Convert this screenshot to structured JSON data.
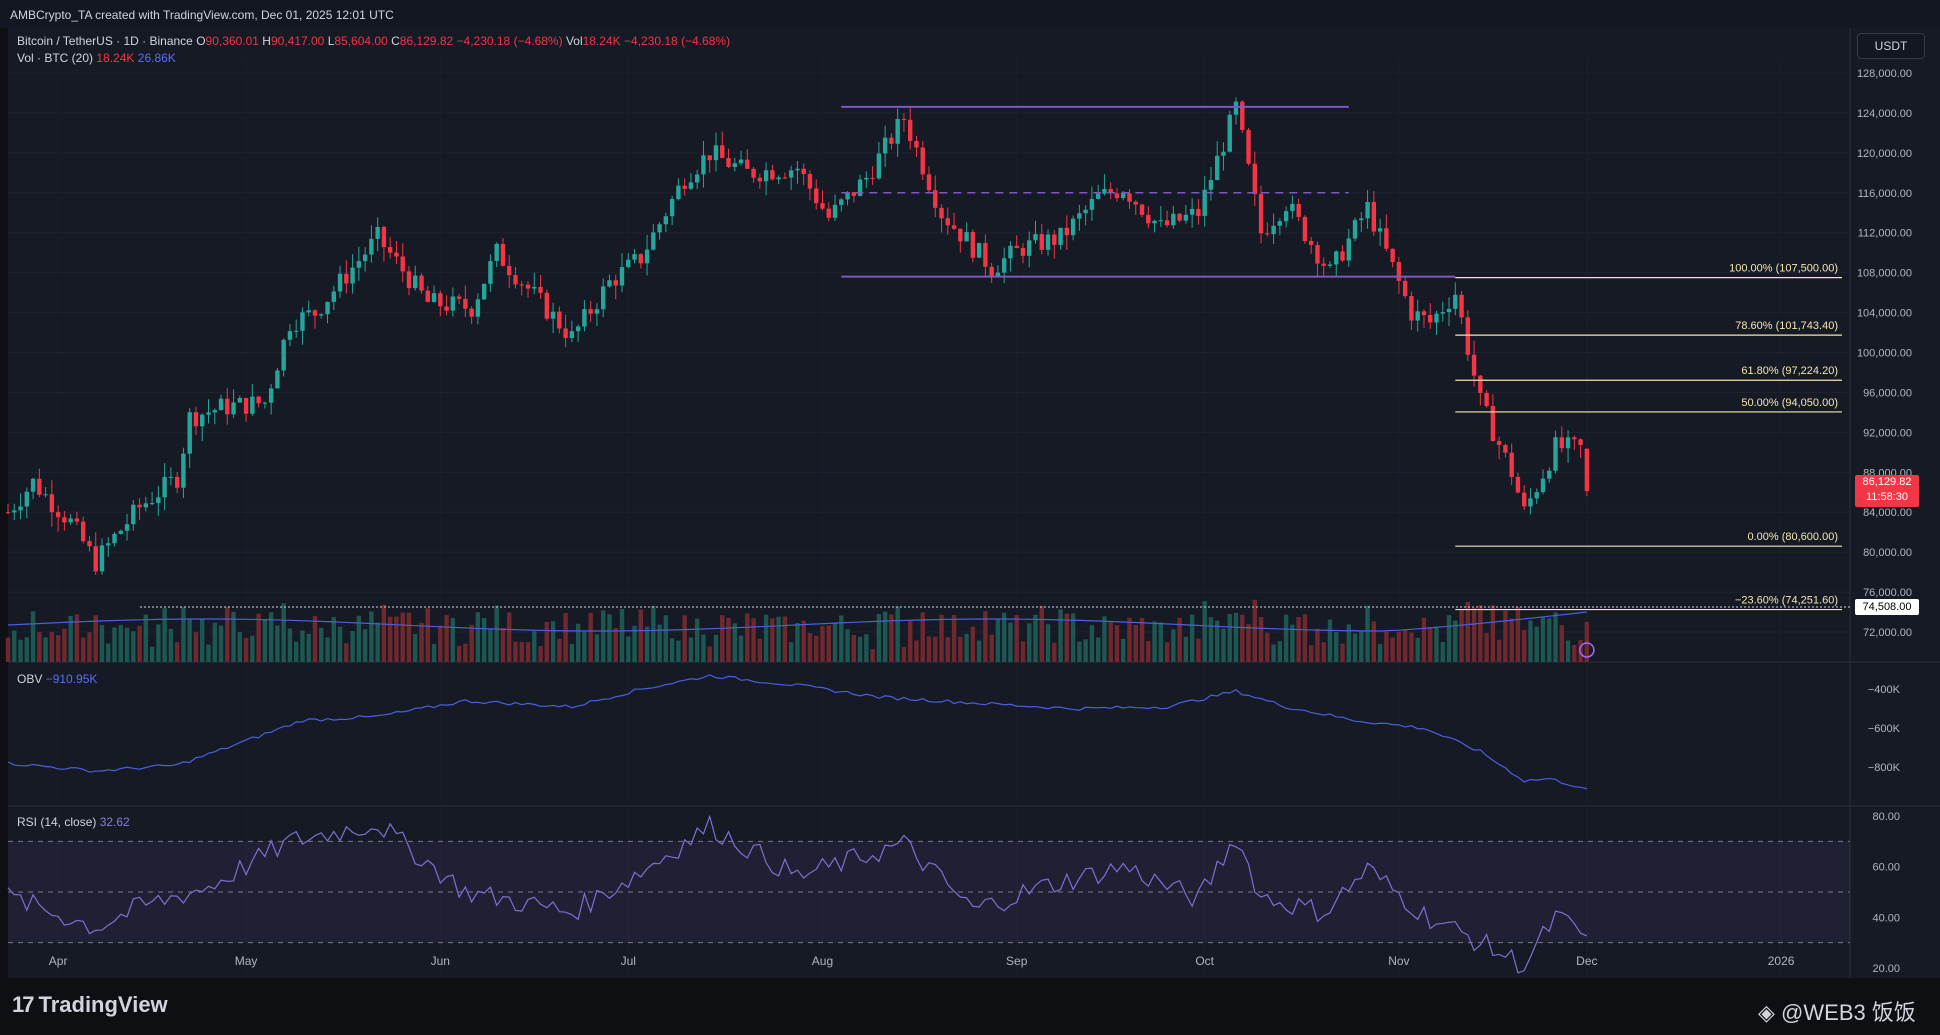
{
  "header": {
    "caption": "AMBCrypto_TA created with TradingView.com, Dec 01, 2025 12:01 UTC"
  },
  "legend": {
    "symbol": "Bitcoin / TetherUS · 1D · Binance",
    "o_label": "O",
    "o": "90,360.01",
    "h_label": "H",
    "h": "90,417.00",
    "l_label": "L",
    "l": "85,604.00",
    "c_label": "C",
    "c": "86,129.82",
    "change": "−4,230.18 (−4.68%)",
    "vol_label": "Vol",
    "vol": "18.24K",
    "vol_change": "−4,230.18 (−4.68%)",
    "vol_ind": "Vol · BTC (20)",
    "vol_ind_v1": "18.24K",
    "vol_ind_v2": "26.86K",
    "obv_label": "OBV",
    "obv_value": "−910.95K",
    "rsi_label": "RSI (14, close)",
    "rsi_value": "32.62"
  },
  "currency_button": "USDT",
  "price_flag": {
    "price": "86,129.82",
    "countdown": "11:58:30"
  },
  "level_flag": "74,508.00",
  "colors": {
    "up": "#26a69a",
    "down": "#f23645",
    "fib": "#f5e6b0",
    "channel": "#7e57c2",
    "obv": "#4a5fe0",
    "rsi": "#7e6fd0"
  },
  "footer": {
    "brand": "TradingView",
    "watermark": "@WEB3 饭饭"
  },
  "chart_data": [
    {
      "type": "candlestick",
      "title": "Bitcoin / TetherUS · 1D · Binance",
      "ylabel": "USDT",
      "ylim": [
        69000,
        129500
      ],
      "yticks": [
        "128,000.00",
        "124,000.00",
        "120,000.00",
        "116,000.00",
        "112,000.00",
        "108,000.00",
        "104,000.00",
        "100,000.00",
        "96,000.00",
        "92,000.00",
        "88,000.00",
        "84,000.00",
        "80,000.00",
        "76,000.00",
        "72,000.00"
      ],
      "xticks": [
        "Apr",
        "May",
        "Jun",
        "Jul",
        "Aug",
        "Sep",
        "Oct",
        "Nov",
        "Dec",
        "2026"
      ],
      "x_range": [
        "2025-03-24",
        "2026-01-12"
      ],
      "path_dates": [
        "2025-03-24",
        "2025-03-28",
        "2025-04-03",
        "2025-04-07",
        "2025-04-10",
        "2025-04-14",
        "2025-04-20",
        "2025-04-22",
        "2025-04-27",
        "2025-05-04",
        "2025-05-08",
        "2025-05-12",
        "2025-05-22",
        "2025-05-30",
        "2025-06-06",
        "2025-06-10",
        "2025-06-17",
        "2025-06-22",
        "2025-06-28",
        "2025-07-03",
        "2025-07-10",
        "2025-07-14",
        "2025-07-20",
        "2025-07-28",
        "2025-08-02",
        "2025-08-08",
        "2025-08-14",
        "2025-08-20",
        "2025-08-28",
        "2025-09-02",
        "2025-09-08",
        "2025-09-14",
        "2025-09-18",
        "2025-09-24",
        "2025-09-30",
        "2025-10-06",
        "2025-10-10",
        "2025-10-14",
        "2025-10-21",
        "2025-10-27",
        "2025-11-03",
        "2025-11-06",
        "2025-11-10",
        "2025-11-14",
        "2025-11-19",
        "2025-11-21",
        "2025-11-26",
        "2025-11-30",
        "2025-12-01"
      ],
      "path_closes": [
        84000,
        87000,
        83000,
        79000,
        81500,
        84500,
        87500,
        93500,
        94500,
        95000,
        103000,
        104000,
        111500,
        105000,
        104500,
        110000,
        105000,
        101500,
        107000,
        109500,
        117500,
        120000,
        118000,
        118500,
        113500,
        117500,
        123500,
        114000,
        108500,
        110500,
        111500,
        115500,
        116500,
        112500,
        114000,
        124500,
        112000,
        115000,
        108000,
        114500,
        104000,
        103000,
        106000,
        95000,
        88000,
        84000,
        90500,
        90360,
        86130
      ],
      "volume_ma": {
        "name": "Vol · BTC (20)",
        "value": "26.86K"
      },
      "channel": {
        "upper": 124600,
        "mid": 116000,
        "lower": 107600,
        "from": "2025-08-04",
        "to": "2025-10-24"
      },
      "fib_levels": [
        {
          "ratio": "100.00%",
          "price": 107500,
          "label": "100.00% (107,500.00)"
        },
        {
          "ratio": "78.60%",
          "price": 101743.4,
          "label": "78.60% (101,743.40)"
        },
        {
          "ratio": "61.80%",
          "price": 97224.2,
          "label": "61.80% (97,224.20)"
        },
        {
          "ratio": "50.00%",
          "price": 94050.0,
          "label": "50.00% (94,050.00)"
        },
        {
          "ratio": "0.00%",
          "price": 80600.0,
          "label": "0.00% (80,600.00)"
        },
        {
          "ratio": "−23.60%",
          "price": 74251.6,
          "label": "−23.60% (74,251.60)"
        }
      ],
      "dotted_level": 74508.0,
      "last": {
        "open": 90360.01,
        "high": 90417.0,
        "low": 85604.0,
        "close": 86129.82
      }
    },
    {
      "type": "line",
      "title": "OBV",
      "yticks": [
        "−400K",
        "−600K",
        "−800K"
      ],
      "ylim": [
        -1000000,
        -260000
      ],
      "path_dates": [
        "2025-03-24",
        "2025-04-07",
        "2025-04-20",
        "2025-04-28",
        "2025-05-10",
        "2025-05-22",
        "2025-06-05",
        "2025-06-22",
        "2025-07-03",
        "2025-07-14",
        "2025-07-28",
        "2025-08-10",
        "2025-08-25",
        "2025-09-10",
        "2025-09-25",
        "2025-10-06",
        "2025-10-14",
        "2025-10-25",
        "2025-11-05",
        "2025-11-14",
        "2025-11-21",
        "2025-11-25",
        "2025-12-01"
      ],
      "values": [
        -780000,
        -820000,
        -790000,
        -700000,
        -560000,
        -540000,
        -460000,
        -490000,
        -400000,
        -330000,
        -380000,
        -440000,
        -470000,
        -500000,
        -490000,
        -410000,
        -490000,
        -560000,
        -600000,
        -720000,
        -870000,
        -860000,
        -910950
      ],
      "last_value": "−910.95K"
    },
    {
      "type": "line",
      "title": "RSI (14, close)",
      "ylim": [
        16,
        84
      ],
      "yticks": [
        "80.00",
        "60.00",
        "40.00",
        "20.00"
      ],
      "bands": [
        70,
        50,
        30
      ],
      "path_dates": [
        "2025-03-24",
        "2025-04-07",
        "2025-04-14",
        "2025-04-25",
        "2025-05-08",
        "2025-05-22",
        "2025-06-05",
        "2025-06-22",
        "2025-07-03",
        "2025-07-14",
        "2025-07-28",
        "2025-08-14",
        "2025-08-25",
        "2025-09-05",
        "2025-09-18",
        "2025-09-30",
        "2025-10-06",
        "2025-10-10",
        "2025-10-20",
        "2025-10-27",
        "2025-11-05",
        "2025-11-14",
        "2025-11-21",
        "2025-11-26",
        "2025-12-01"
      ],
      "values": [
        48,
        36,
        44,
        52,
        70,
        77,
        50,
        42,
        58,
        76,
        56,
        69,
        43,
        52,
        60,
        47,
        72,
        48,
        42,
        59,
        41,
        30,
        21,
        40,
        32.62
      ],
      "last_value": "32.62"
    }
  ]
}
